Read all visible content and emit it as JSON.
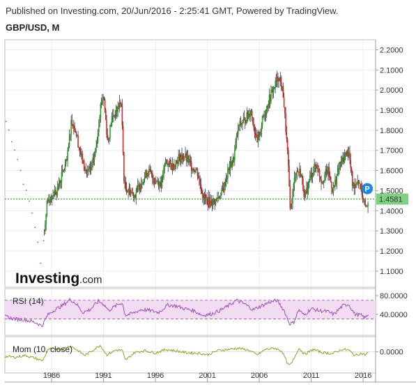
{
  "header": {
    "published": "Published on Investing.com, 20/Jun/2016 - 2:25:41 GMT, Powered by TradingView.",
    "symbol": "GBP/USD, M"
  },
  "logo": {
    "main": "Investing",
    "suffix": ".com"
  },
  "chart_data": {
    "type": "candlestick",
    "title": "GBP/USD, M",
    "price_axis": {
      "ylim": [
        1.02,
        2.25
      ],
      "ticks": [
        "2.2000",
        "2.1000",
        "2.0000",
        "1.9000",
        "1.8000",
        "1.7000",
        "1.6000",
        "1.5000",
        "1.4000",
        "1.3000",
        "1.2000",
        "1.1000"
      ],
      "last_price_label": "1.4581",
      "last_price": 1.4581
    },
    "x_axis": {
      "ticks": [
        "1986",
        "1991",
        "1996",
        "2001",
        "2006",
        "2011",
        "2016"
      ],
      "xlim": [
        1981.5,
        2017.2
      ]
    },
    "price_path": [
      [
        1981.5,
        1.86
      ],
      [
        1982.0,
        1.78
      ],
      [
        1982.5,
        1.7
      ],
      [
        1983.0,
        1.6
      ],
      [
        1983.5,
        1.5
      ],
      [
        1984.0,
        1.42
      ],
      [
        1984.5,
        1.3
      ],
      [
        1985.0,
        1.12
      ],
      [
        1985.5,
        1.42
      ],
      [
        1986.0,
        1.48
      ],
      [
        1986.5,
        1.5
      ],
      [
        1987.0,
        1.58
      ],
      [
        1987.5,
        1.65
      ],
      [
        1987.9,
        1.85
      ],
      [
        1988.3,
        1.8
      ],
      [
        1988.8,
        1.68
      ],
      [
        1989.2,
        1.6
      ],
      [
        1989.8,
        1.6
      ],
      [
        1990.3,
        1.72
      ],
      [
        1990.7,
        1.92
      ],
      [
        1991.0,
        1.98
      ],
      [
        1991.4,
        1.74
      ],
      [
        1991.8,
        1.86
      ],
      [
        1992.3,
        1.9
      ],
      [
        1992.7,
        1.95
      ],
      [
        1993.0,
        1.52
      ],
      [
        1993.5,
        1.5
      ],
      [
        1994.0,
        1.48
      ],
      [
        1994.8,
        1.56
      ],
      [
        1995.3,
        1.6
      ],
      [
        1995.9,
        1.55
      ],
      [
        1996.6,
        1.54
      ],
      [
        1997.0,
        1.65
      ],
      [
        1997.6,
        1.62
      ],
      [
        1998.2,
        1.66
      ],
      [
        1998.8,
        1.67
      ],
      [
        1999.5,
        1.62
      ],
      [
        2000.0,
        1.6
      ],
      [
        2000.6,
        1.47
      ],
      [
        2001.2,
        1.44
      ],
      [
        2001.8,
        1.45
      ],
      [
        2002.5,
        1.5
      ],
      [
        2003.0,
        1.6
      ],
      [
        2003.5,
        1.65
      ],
      [
        2004.0,
        1.82
      ],
      [
        2004.6,
        1.85
      ],
      [
        2005.2,
        1.9
      ],
      [
        2005.8,
        1.73
      ],
      [
        2006.3,
        1.85
      ],
      [
        2006.8,
        1.93
      ],
      [
        2007.3,
        2.0
      ],
      [
        2007.9,
        2.07
      ],
      [
        2008.3,
        1.98
      ],
      [
        2008.7,
        1.7
      ],
      [
        2009.0,
        1.4
      ],
      [
        2009.5,
        1.6
      ],
      [
        2010.0,
        1.59
      ],
      [
        2010.4,
        1.46
      ],
      [
        2010.9,
        1.57
      ],
      [
        2011.5,
        1.63
      ],
      [
        2012.0,
        1.55
      ],
      [
        2012.6,
        1.6
      ],
      [
        2013.1,
        1.5
      ],
      [
        2013.7,
        1.62
      ],
      [
        2014.3,
        1.68
      ],
      [
        2014.6,
        1.7
      ],
      [
        2015.0,
        1.52
      ],
      [
        2015.5,
        1.56
      ],
      [
        2015.9,
        1.49
      ],
      [
        2016.2,
        1.4
      ],
      [
        2016.5,
        1.46
      ]
    ],
    "rsi": {
      "label": "RSI (14)",
      "ylim": [
        -5,
        95
      ],
      "ticks": [
        "80.0000",
        "40.0000"
      ],
      "band": [
        30,
        70
      ],
      "values": [
        [
          1981.5,
          35
        ],
        [
          1982.5,
          30
        ],
        [
          1983.5,
          28
        ],
        [
          1984.5,
          22
        ],
        [
          1985.1,
          15
        ],
        [
          1985.6,
          38
        ],
        [
          1986.3,
          50
        ],
        [
          1987.0,
          58
        ],
        [
          1987.8,
          72
        ],
        [
          1988.4,
          62
        ],
        [
          1989.0,
          44
        ],
        [
          1989.7,
          50
        ],
        [
          1990.5,
          68
        ],
        [
          1991.0,
          62
        ],
        [
          1991.5,
          48
        ],
        [
          1992.3,
          60
        ],
        [
          1992.8,
          65
        ],
        [
          1993.1,
          38
        ],
        [
          1993.8,
          42
        ],
        [
          1994.6,
          50
        ],
        [
          1995.5,
          48
        ],
        [
          1996.3,
          44
        ],
        [
          1997.2,
          60
        ],
        [
          1998.0,
          58
        ],
        [
          1998.8,
          52
        ],
        [
          1999.7,
          48
        ],
        [
          2000.5,
          38
        ],
        [
          2001.3,
          40
        ],
        [
          2002.2,
          48
        ],
        [
          2003.0,
          58
        ],
        [
          2003.8,
          70
        ],
        [
          2004.6,
          62
        ],
        [
          2005.4,
          50
        ],
        [
          2006.2,
          58
        ],
        [
          2007.0,
          66
        ],
        [
          2007.7,
          70
        ],
        [
          2008.4,
          48
        ],
        [
          2008.9,
          20
        ],
        [
          2009.3,
          22
        ],
        [
          2009.8,
          50
        ],
        [
          2010.3,
          38
        ],
        [
          2011.0,
          52
        ],
        [
          2011.7,
          48
        ],
        [
          2012.5,
          46
        ],
        [
          2013.2,
          40
        ],
        [
          2014.0,
          58
        ],
        [
          2014.6,
          62
        ],
        [
          2015.2,
          40
        ],
        [
          2015.8,
          38
        ],
        [
          2016.2,
          32
        ],
        [
          2016.5,
          40
        ]
      ]
    },
    "momentum": {
      "label": "Mom (10, close)",
      "ticks": [
        "0.0000"
      ],
      "ylim": [
        -0.7,
        0.5
      ],
      "values": [
        [
          1981.5,
          -0.15
        ],
        [
          1982.5,
          -0.18
        ],
        [
          1983.5,
          -0.12
        ],
        [
          1984.5,
          -0.22
        ],
        [
          1985.1,
          -0.3
        ],
        [
          1985.7,
          0.08
        ],
        [
          1986.3,
          0.1
        ],
        [
          1987.0,
          0.08
        ],
        [
          1987.8,
          0.2
        ],
        [
          1988.5,
          0.05
        ],
        [
          1989.2,
          -0.12
        ],
        [
          1990.0,
          0.06
        ],
        [
          1990.7,
          0.22
        ],
        [
          1991.3,
          -0.1
        ],
        [
          1992.2,
          0.06
        ],
        [
          1992.8,
          0.05
        ],
        [
          1993.1,
          -0.28
        ],
        [
          1994.0,
          -0.02
        ],
        [
          1995.0,
          0.04
        ],
        [
          1996.0,
          -0.04
        ],
        [
          1997.0,
          0.08
        ],
        [
          1998.0,
          0.03
        ],
        [
          1999.0,
          -0.03
        ],
        [
          2000.3,
          -0.05
        ],
        [
          2001.0,
          -0.1
        ],
        [
          2002.0,
          0.04
        ],
        [
          2003.0,
          0.08
        ],
        [
          2004.0,
          0.12
        ],
        [
          2005.0,
          0.05
        ],
        [
          2005.8,
          -0.1
        ],
        [
          2006.6,
          0.08
        ],
        [
          2007.5,
          0.12
        ],
        [
          2008.2,
          0.02
        ],
        [
          2008.8,
          -0.45
        ],
        [
          2009.1,
          -0.4
        ],
        [
          2009.8,
          0.12
        ],
        [
          2010.4,
          -0.08
        ],
        [
          2011.2,
          0.08
        ],
        [
          2012.0,
          -0.02
        ],
        [
          2013.0,
          -0.06
        ],
        [
          2014.0,
          0.08
        ],
        [
          2014.6,
          0.06
        ],
        [
          2015.2,
          -0.12
        ],
        [
          2015.8,
          -0.05
        ],
        [
          2016.2,
          -0.1
        ],
        [
          2016.5,
          -0.02
        ]
      ]
    },
    "colors": {
      "up": "#2ca02c",
      "down": "#d62728",
      "wick": "#222222",
      "last_price": "#1fb01f",
      "rsi_line": "#9b4fb3",
      "rsi_band": "#f2dcf2",
      "momentum": "#9a9a2a",
      "marker": "#1e88e5"
    },
    "grid": true,
    "marker": {
      "symbol": "P",
      "x": 2016.4,
      "y": 1.51
    }
  }
}
